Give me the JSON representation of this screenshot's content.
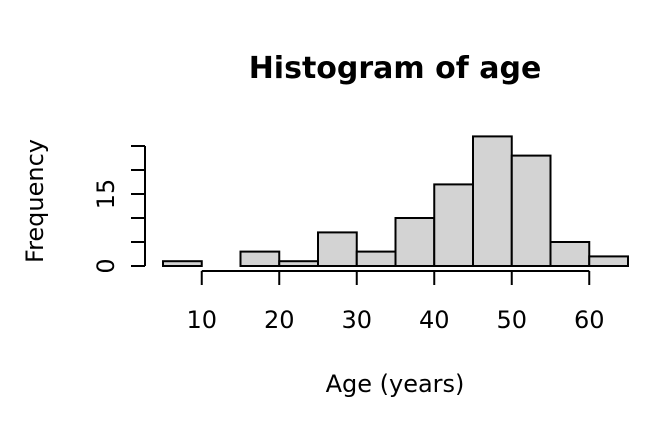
{
  "chart_data": {
    "type": "bar",
    "title": "Histogram of age",
    "xlabel": "Age (years)",
    "ylabel": "Frequency",
    "bin_edges": [
      5,
      10,
      15,
      20,
      25,
      30,
      35,
      40,
      45,
      50,
      55,
      60,
      65
    ],
    "values": [
      1,
      0,
      3,
      1,
      7,
      3,
      10,
      17,
      27,
      23,
      5,
      2
    ],
    "xlim": [
      5,
      65
    ],
    "ylim": [
      0,
      25
    ],
    "x_ticks": [
      10,
      20,
      30,
      40,
      50,
      60
    ],
    "x_tick_labels": [
      "10",
      "20",
      "30",
      "40",
      "50",
      "60"
    ],
    "y_ticks": [
      0,
      5,
      10,
      15,
      20,
      25
    ],
    "y_tick_labels": [
      "0",
      "",
      "",
      "15",
      "",
      ""
    ],
    "bar_fill": "#d3d3d3",
    "bar_stroke": "#000000",
    "grid": false,
    "legend": "none"
  }
}
